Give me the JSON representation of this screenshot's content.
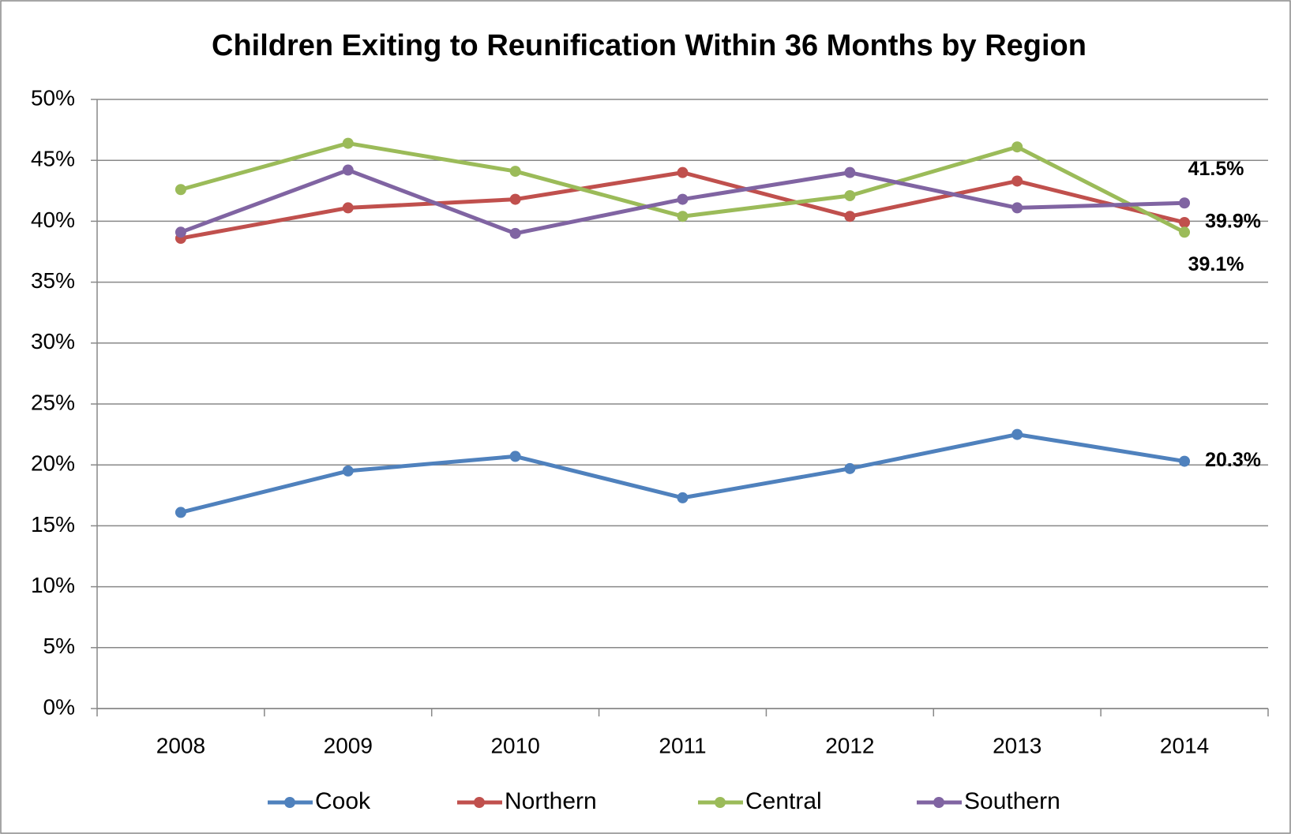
{
  "chart_data": {
    "type": "line",
    "title": "Children Exiting to Reunification Within 36 Months by Region",
    "categories": [
      "2008",
      "2009",
      "2010",
      "2011",
      "2012",
      "2013",
      "2014"
    ],
    "series": [
      {
        "name": "Cook",
        "color": "#4f81bd",
        "values": [
          16.1,
          19.5,
          20.7,
          17.3,
          19.7,
          22.5,
          20.3
        ],
        "value_labels": [
          null,
          null,
          null,
          null,
          null,
          null,
          "20.3%"
        ]
      },
      {
        "name": "Northern",
        "color": "#c0504d",
        "values": [
          38.6,
          41.1,
          41.8,
          44.0,
          40.4,
          43.3,
          39.9
        ],
        "value_labels": [
          null,
          null,
          null,
          null,
          null,
          null,
          "39.9%"
        ]
      },
      {
        "name": "Central",
        "color": "#9bbb59",
        "values": [
          42.6,
          46.4,
          44.1,
          40.4,
          42.1,
          46.1,
          39.1
        ],
        "value_labels": [
          null,
          null,
          null,
          null,
          null,
          null,
          "39.1%"
        ]
      },
      {
        "name": "Southern",
        "color": "#8064a2",
        "values": [
          39.1,
          44.2,
          39.0,
          41.8,
          44.0,
          41.1,
          41.5
        ],
        "value_labels": [
          null,
          null,
          null,
          null,
          null,
          null,
          "41.5%"
        ]
      }
    ],
    "ylim": [
      0,
      50
    ],
    "yticks": [
      {
        "value": 0,
        "label": "0%"
      },
      {
        "value": 5,
        "label": "5%"
      },
      {
        "value": 10,
        "label": "10%"
      },
      {
        "value": 15,
        "label": "15%"
      },
      {
        "value": 20,
        "label": "20%"
      },
      {
        "value": 25,
        "label": "25%"
      },
      {
        "value": 30,
        "label": "30%"
      },
      {
        "value": 35,
        "label": "35%"
      },
      {
        "value": 40,
        "label": "40%"
      },
      {
        "value": 45,
        "label": "45%"
      },
      {
        "value": 50,
        "label": "50%"
      }
    ],
    "grid": true,
    "legend": "bottom"
  }
}
